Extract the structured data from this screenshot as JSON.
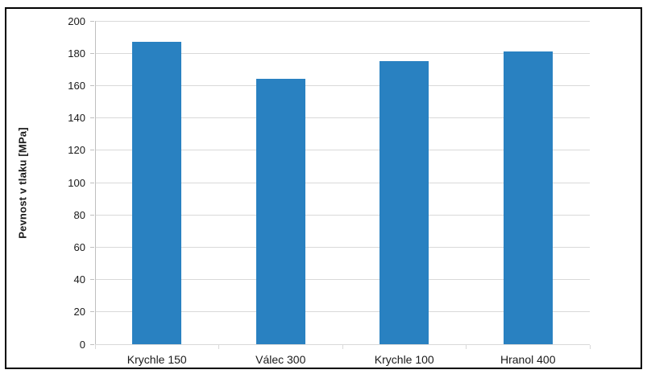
{
  "chart_data": {
    "type": "bar",
    "title": "",
    "categories": [
      "Krychle 150",
      "Válec 300",
      "Krychle 100",
      "Hranol 400"
    ],
    "values": [
      187,
      164,
      175,
      181
    ],
    "xlabel": "",
    "ylabel": "Pevnost v tlaku [MPa]",
    "ylim": [
      0,
      200
    ],
    "ytick_step": 20,
    "grid": true,
    "legend": "none",
    "colors": {
      "bar": "#2981c1",
      "gridline": "#d9d9d9",
      "axis_line": "#bfbfbf",
      "text": "#1a1a1a",
      "frame_border": "#000000",
      "background": "#ffffff"
    }
  }
}
